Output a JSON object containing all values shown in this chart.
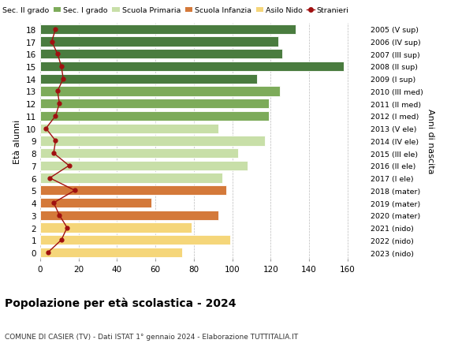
{
  "ages": [
    18,
    17,
    16,
    15,
    14,
    13,
    12,
    11,
    10,
    9,
    8,
    7,
    6,
    5,
    4,
    3,
    2,
    1,
    0
  ],
  "right_labels": [
    "2005 (V sup)",
    "2006 (IV sup)",
    "2007 (III sup)",
    "2008 (II sup)",
    "2009 (I sup)",
    "2010 (III med)",
    "2011 (II med)",
    "2012 (I med)",
    "2013 (V ele)",
    "2014 (IV ele)",
    "2015 (III ele)",
    "2016 (II ele)",
    "2017 (I ele)",
    "2018 (mater)",
    "2019 (mater)",
    "2020 (mater)",
    "2021 (nido)",
    "2022 (nido)",
    "2023 (nido)"
  ],
  "bar_values": [
    133,
    124,
    126,
    158,
    113,
    125,
    119,
    119,
    93,
    117,
    103,
    108,
    95,
    97,
    58,
    93,
    79,
    99,
    74
  ],
  "stranieri_values": [
    8,
    6,
    9,
    11,
    12,
    9,
    10,
    8,
    3,
    8,
    7,
    15,
    5,
    18,
    7,
    10,
    14,
    11,
    4
  ],
  "bar_colors": [
    "#4a7c3f",
    "#4a7c3f",
    "#4a7c3f",
    "#4a7c3f",
    "#4a7c3f",
    "#7dab5a",
    "#7dab5a",
    "#7dab5a",
    "#c8dfa8",
    "#c8dfa8",
    "#c8dfa8",
    "#c8dfa8",
    "#c8dfa8",
    "#d4793a",
    "#d4793a",
    "#d4793a",
    "#f5d67a",
    "#f5d67a",
    "#f5d67a"
  ],
  "legend_labels": [
    "Sec. II grado",
    "Sec. I grado",
    "Scuola Primaria",
    "Scuola Infanzia",
    "Asilo Nido",
    "Stranieri"
  ],
  "legend_colors": [
    "#4a7c3f",
    "#7dab5a",
    "#c8dfa8",
    "#d4793a",
    "#f5d67a",
    "#a01010"
  ],
  "ylabel": "Età alunni",
  "right_ylabel": "Anni di nascita",
  "title": "Popolazione per età scolastica - 2024",
  "subtitle": "COMUNE DI CASIER (TV) - Dati ISTAT 1° gennaio 2024 - Elaborazione TUTTITALIA.IT",
  "xlim": [
    0,
    170
  ],
  "xticks": [
    0,
    20,
    40,
    60,
    80,
    100,
    120,
    140,
    160
  ],
  "bg_color": "#ffffff",
  "bar_height": 0.78,
  "stranieri_color": "#a01010"
}
